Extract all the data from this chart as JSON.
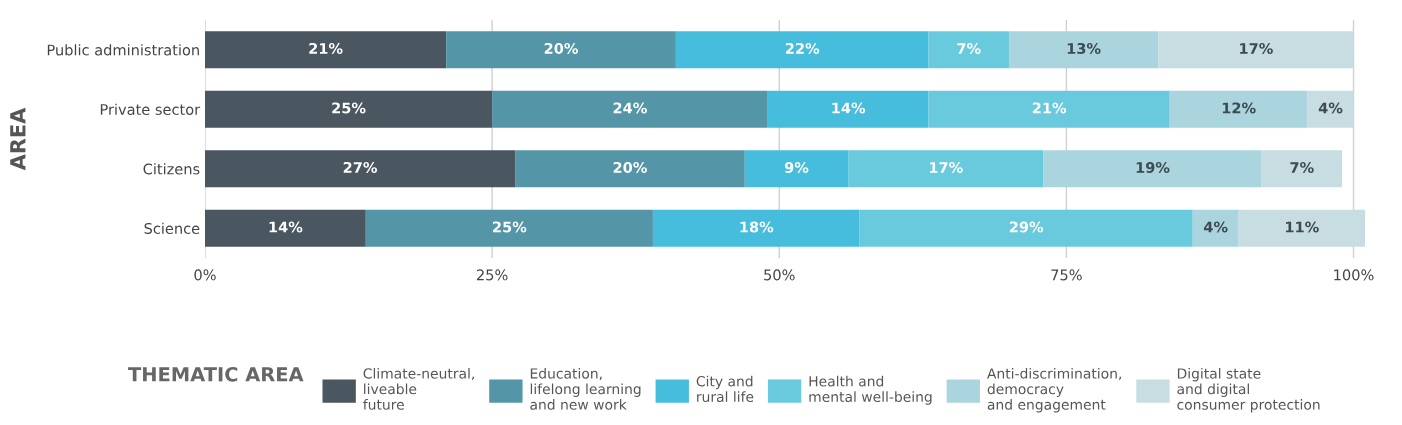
{
  "chart_data": {
    "type": "bar",
    "orientation": "horizontal",
    "stacked": true,
    "ylabel": "AREA",
    "legend_title": "THEMATIC AREA",
    "legend": "bottom",
    "grid": "x",
    "categories": [
      "Public administration",
      "Private sector",
      "Citizens",
      "Science"
    ],
    "xlim": [
      0,
      101
    ],
    "xticks": [
      {
        "value": 0,
        "label": "0%"
      },
      {
        "value": 25,
        "label": "25%"
      },
      {
        "value": 50,
        "label": "50%"
      },
      {
        "value": 75,
        "label": "75%"
      },
      {
        "value": 100,
        "label": "100%"
      }
    ],
    "series": [
      {
        "name": "Climate-neutral,\nliveable\nfuture",
        "color": "#4a5660",
        "values": [
          21,
          25,
          27,
          14
        ],
        "value_labels": [
          "21%",
          "25%",
          "27%",
          "14%"
        ]
      },
      {
        "name": "Education,\nlifelong learning\nand new work",
        "color": "#5496a8",
        "values": [
          20,
          24,
          20,
          25
        ],
        "value_labels": [
          "20%",
          "24%",
          "20%",
          "25%"
        ]
      },
      {
        "name": "City and\nrural life",
        "color": "#46bddc",
        "values": [
          22,
          14,
          9,
          18
        ],
        "value_labels": [
          "22%",
          "14%",
          "9%",
          "18%"
        ]
      },
      {
        "name": "Health and\nmental well-being",
        "color": "#68cadc",
        "values": [
          7,
          21,
          17,
          29
        ],
        "value_labels": [
          "7%",
          "21%",
          "17%",
          "29%"
        ]
      },
      {
        "name": "Anti-discrimination,\ndemocracy\nand engagement",
        "color": "#aad4de",
        "values": [
          13,
          12,
          19,
          4
        ],
        "value_labels": [
          "13%",
          "12%",
          "19%",
          "4%"
        ]
      },
      {
        "name": "Digital state\nand digital\nconsumer protection",
        "color": "#c8dde1",
        "values": [
          17,
          4,
          7,
          11
        ],
        "value_labels": [
          "17%",
          "4%",
          "7%",
          "11%"
        ]
      }
    ]
  }
}
